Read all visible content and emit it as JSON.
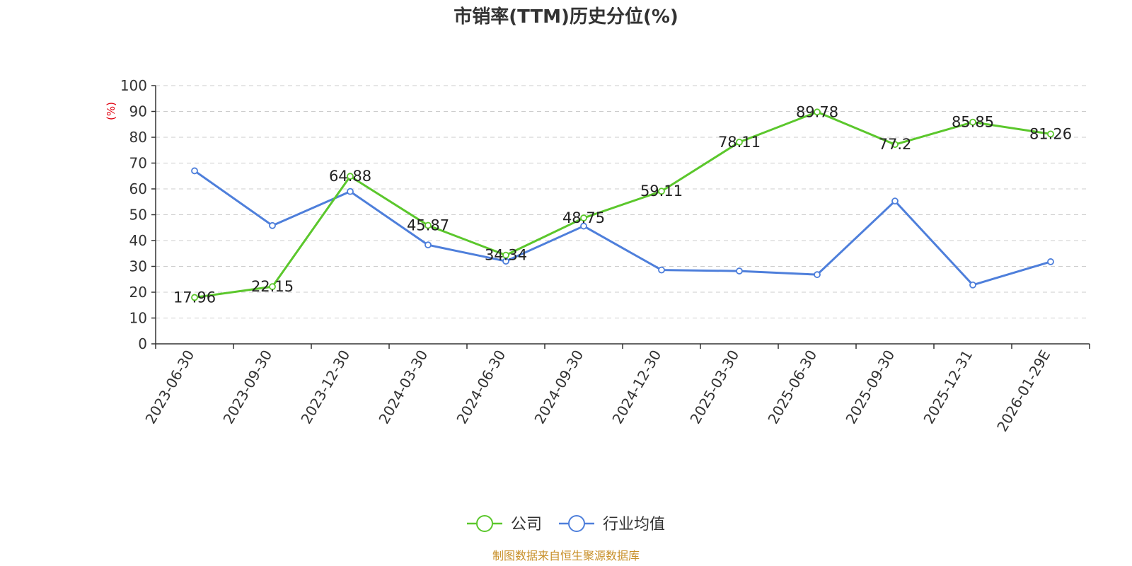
{
  "chart_data": {
    "type": "line",
    "title": "市销率(TTM)历史分位(%)",
    "ylabel": "(%)",
    "ylim": [
      0,
      100
    ],
    "yticks": [
      0,
      10,
      20,
      30,
      40,
      50,
      60,
      70,
      80,
      90,
      100
    ],
    "grid": true,
    "legend_position": "bottom",
    "categories": [
      "2023-06-30",
      "2023-09-30",
      "2023-12-30",
      "2024-03-30",
      "2024-06-30",
      "2024-09-30",
      "2024-12-30",
      "2025-03-30",
      "2025-06-30",
      "2025-09-30",
      "2025-12-31",
      "2026-01-29E"
    ],
    "series": [
      {
        "name": "公司",
        "color": "#5bc72c",
        "values": [
          17.96,
          22.15,
          64.88,
          45.87,
          34.34,
          48.75,
          59.11,
          78.11,
          89.78,
          77.2,
          85.85,
          81.26
        ],
        "labels": [
          "17.96",
          "22.15",
          "64.88",
          "45.87",
          "34.34",
          "48.75",
          "59.11",
          "78.11",
          "89.78",
          "77.2",
          "85.85",
          "81.26"
        ]
      },
      {
        "name": "行业均值",
        "color": "#4e7fdb",
        "values": [
          67.0,
          45.8,
          59.0,
          38.3,
          32.0,
          45.6,
          28.6,
          28.2,
          26.8,
          55.3,
          22.8,
          31.8
        ]
      }
    ],
    "source": "制图数据来自恒生聚源数据库",
    "source_color": "#c8902a",
    "ylabel_color": "#e0000f"
  }
}
